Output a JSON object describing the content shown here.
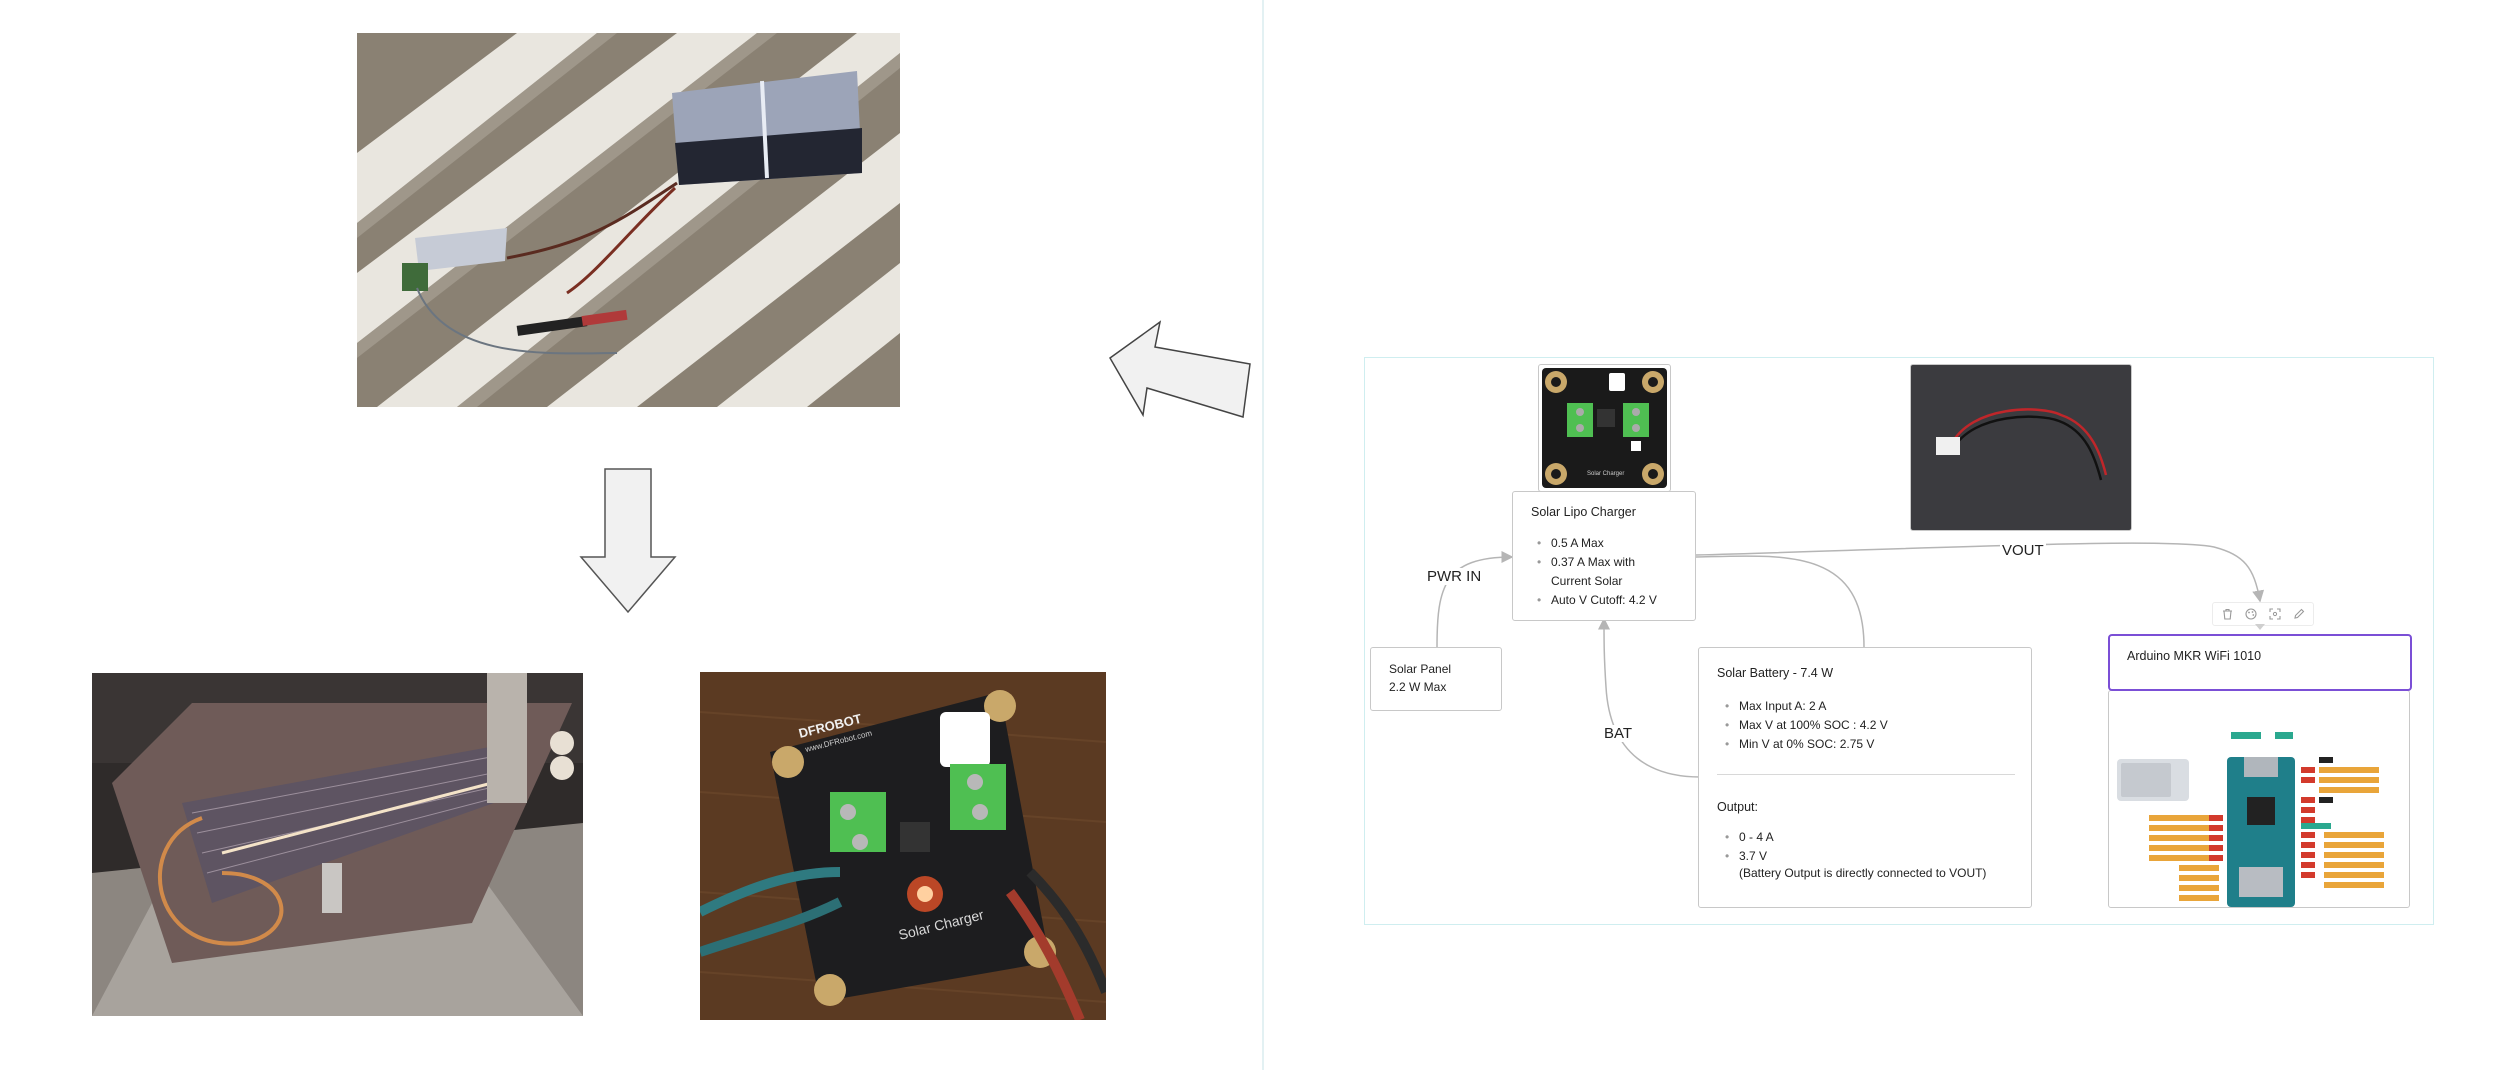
{
  "diagram": {
    "nodes": {
      "solar_panel": {
        "lines": [
          "Solar Panel",
          "2.2 W Max"
        ]
      },
      "charger": {
        "title": "Solar Lipo Charger",
        "bullets": [
          "0.5 A Max",
          "0.37 A Max with",
          "Current Solar",
          "Auto V Cutoff: 4.2 V"
        ]
      },
      "battery": {
        "title": "Solar Battery - 7.4 W",
        "bullets": [
          "Max Input A: 2 A",
          "Max V at 100% SOC : 4.2 V",
          "Min V at 0% SOC: 2.75 V"
        ],
        "output_title": "Output:",
        "output_bullets": [
          "0 - 4 A",
          "3.7 V"
        ],
        "output_note": "(Battery Output is directly connected to VOUT)"
      },
      "arduino": {
        "title": "Arduino MKR WiFi 1010"
      }
    },
    "edges": {
      "pwr_in": "PWR IN",
      "bat": "BAT",
      "vout": "VOUT"
    },
    "board_silkscreen": "Solar Charger",
    "photo_board_silkscreen": "Solar Charger",
    "photo_board_brand": "DFROBOT",
    "photo_board_url": "www.DFRobot.com"
  },
  "toolbar": {
    "icons": [
      "trash-icon",
      "palette-icon",
      "focus-icon",
      "edit-icon"
    ]
  },
  "colors": {
    "accent": "#7b4fd6",
    "frame": "#cfeef0",
    "edge": "#b5b5b5"
  }
}
